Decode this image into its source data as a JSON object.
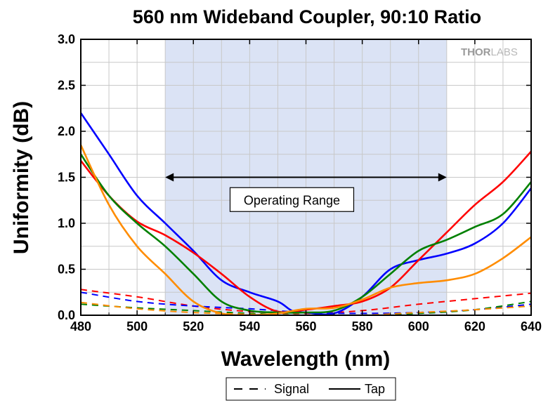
{
  "chart_data": {
    "type": "line",
    "title": "560 nm Wideband Coupler, 90:10 Ratio",
    "xlabel": "Wavelength (nm)",
    "ylabel": "Uniformity (dB)",
    "xlim": [
      480,
      640
    ],
    "ylim": [
      0,
      3.0
    ],
    "x_ticks": [
      "480",
      "500",
      "520",
      "540",
      "560",
      "580",
      "600",
      "620",
      "640"
    ],
    "y_ticks": [
      "0.0",
      "0.5",
      "1.0",
      "1.5",
      "2.0",
      "2.5",
      "3.0"
    ],
    "grid": true,
    "legend_position": "bottom-center",
    "legend": [
      {
        "label": "Signal",
        "style": "dashed"
      },
      {
        "label": "Tap",
        "style": "solid"
      }
    ],
    "shaded_region": {
      "x_start": 510,
      "x_end": 610,
      "color": "#dbe3f5"
    },
    "annotation": {
      "text": "Operating Range",
      "arrow_x_start": 510,
      "arrow_x_end": 610,
      "arrow_y": 1.5,
      "box_x": 555,
      "box_y": 1.25
    },
    "logo": {
      "part1": "THOR",
      "part2": "LABS"
    },
    "series": [
      {
        "color": "#0000ff",
        "style": "solid",
        "points": [
          [
            480,
            2.2
          ],
          [
            490,
            1.75
          ],
          [
            500,
            1.3
          ],
          [
            510,
            1.0
          ],
          [
            520,
            0.7
          ],
          [
            530,
            0.38
          ],
          [
            540,
            0.25
          ],
          [
            550,
            0.15
          ],
          [
            555,
            0.05
          ],
          [
            560,
            0.03
          ],
          [
            570,
            0.02
          ],
          [
            580,
            0.2
          ],
          [
            590,
            0.5
          ],
          [
            600,
            0.6
          ],
          [
            610,
            0.67
          ],
          [
            620,
            0.78
          ],
          [
            630,
            1.0
          ],
          [
            640,
            1.38
          ]
        ]
      },
      {
        "color": "#ff0000",
        "style": "solid",
        "points": [
          [
            480,
            1.68
          ],
          [
            490,
            1.3
          ],
          [
            500,
            1.02
          ],
          [
            510,
            0.87
          ],
          [
            520,
            0.68
          ],
          [
            530,
            0.45
          ],
          [
            540,
            0.2
          ],
          [
            550,
            0.04
          ],
          [
            560,
            0.06
          ],
          [
            570,
            0.1
          ],
          [
            580,
            0.15
          ],
          [
            590,
            0.3
          ],
          [
            600,
            0.6
          ],
          [
            610,
            0.9
          ],
          [
            620,
            1.2
          ],
          [
            630,
            1.45
          ],
          [
            640,
            1.78
          ]
        ]
      },
      {
        "color": "#008000",
        "style": "solid",
        "points": [
          [
            480,
            1.75
          ],
          [
            490,
            1.3
          ],
          [
            500,
            1.0
          ],
          [
            510,
            0.75
          ],
          [
            520,
            0.45
          ],
          [
            530,
            0.15
          ],
          [
            540,
            0.05
          ],
          [
            550,
            0.03
          ],
          [
            560,
            0.03
          ],
          [
            570,
            0.05
          ],
          [
            580,
            0.2
          ],
          [
            590,
            0.45
          ],
          [
            600,
            0.7
          ],
          [
            610,
            0.82
          ],
          [
            620,
            0.96
          ],
          [
            630,
            1.1
          ],
          [
            640,
            1.45
          ]
        ]
      },
      {
        "color": "#ff8c00",
        "style": "solid",
        "points": [
          [
            480,
            1.85
          ],
          [
            490,
            1.2
          ],
          [
            500,
            0.75
          ],
          [
            510,
            0.45
          ],
          [
            520,
            0.15
          ],
          [
            530,
            0.02
          ],
          [
            540,
            0.0
          ],
          [
            550,
            0.02
          ],
          [
            560,
            0.07
          ],
          [
            570,
            0.08
          ],
          [
            580,
            0.17
          ],
          [
            590,
            0.3
          ],
          [
            600,
            0.35
          ],
          [
            610,
            0.38
          ],
          [
            620,
            0.45
          ],
          [
            630,
            0.62
          ],
          [
            640,
            0.85
          ]
        ]
      },
      {
        "color": "#ff0000",
        "style": "dashed",
        "points": [
          [
            480,
            0.28
          ],
          [
            500,
            0.2
          ],
          [
            520,
            0.1
          ],
          [
            540,
            0.04
          ],
          [
            560,
            0.02
          ],
          [
            580,
            0.05
          ],
          [
            600,
            0.12
          ],
          [
            620,
            0.18
          ],
          [
            640,
            0.24
          ]
        ]
      },
      {
        "color": "#0000ff",
        "style": "dashed",
        "points": [
          [
            480,
            0.25
          ],
          [
            500,
            0.15
          ],
          [
            520,
            0.1
          ],
          [
            540,
            0.07
          ],
          [
            560,
            0.03
          ],
          [
            580,
            0.02
          ],
          [
            600,
            0.03
          ],
          [
            620,
            0.06
          ],
          [
            640,
            0.12
          ]
        ]
      },
      {
        "color": "#008000",
        "style": "dashed",
        "points": [
          [
            480,
            0.12
          ],
          [
            500,
            0.08
          ],
          [
            520,
            0.05
          ],
          [
            540,
            0.02
          ],
          [
            560,
            0.0
          ],
          [
            580,
            0.0
          ],
          [
            600,
            0.02
          ],
          [
            620,
            0.06
          ],
          [
            640,
            0.15
          ]
        ]
      },
      {
        "color": "#ff8c00",
        "style": "dashed",
        "points": [
          [
            480,
            0.14
          ],
          [
            500,
            0.07
          ],
          [
            520,
            0.03
          ],
          [
            540,
            0.01
          ],
          [
            560,
            0.0
          ],
          [
            580,
            0.0
          ],
          [
            600,
            0.03
          ],
          [
            620,
            0.06
          ],
          [
            640,
            0.1
          ]
        ]
      }
    ]
  }
}
